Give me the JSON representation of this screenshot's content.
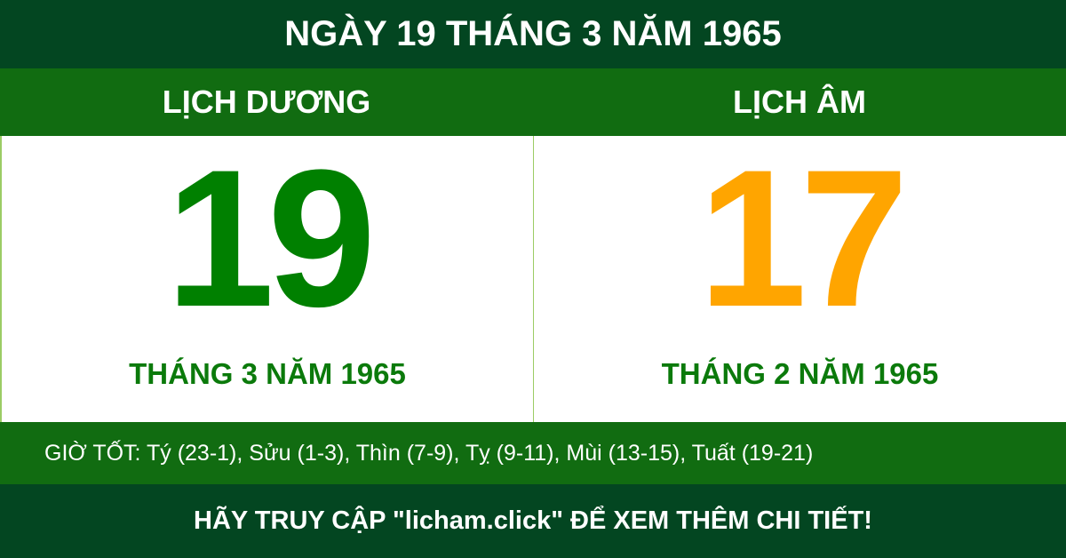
{
  "title": "NGÀY 19 THÁNG 3 NĂM 1965",
  "solar": {
    "label": "LỊCH DƯƠNG",
    "day": "19",
    "month_year": "THÁNG 3 NĂM 1965"
  },
  "lunar": {
    "label": "LỊCH ÂM",
    "day": "17",
    "month_year": "THÁNG 2 NĂM 1965"
  },
  "good_hours": "GIỜ TỐT: Tý (23-1), Sửu (1-3), Thìn (7-9), Tỵ (9-11), Mùi (13-15), Tuất (19-21)",
  "footer": "HÃY TRUY CẬP \"licham.click\" ĐỂ XEM THÊM CHI TIẾT!",
  "colors": {
    "dark_green": "#034621",
    "green": "#116c11",
    "solar_day": "#008000",
    "lunar_day": "#ffa500"
  }
}
